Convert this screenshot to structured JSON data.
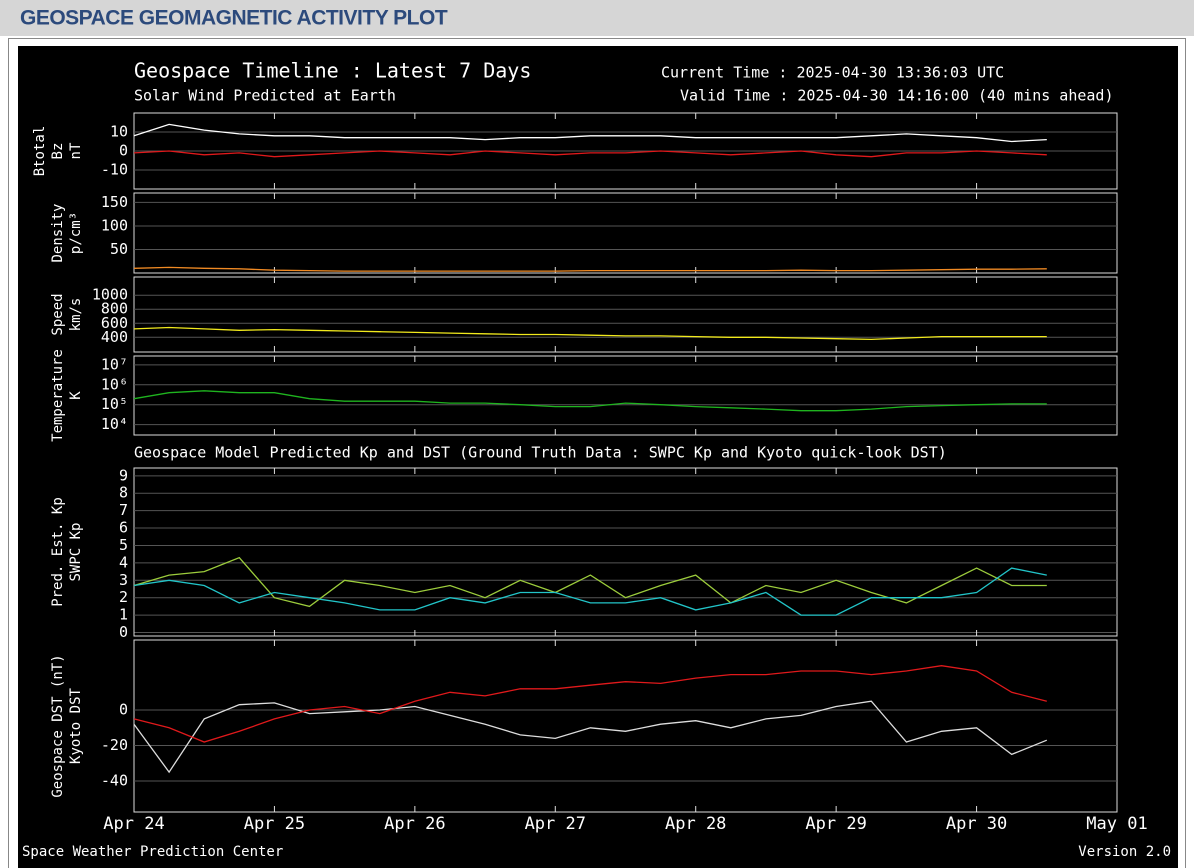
{
  "header": {
    "title": "GEOSPACE GEOMAGNETIC ACTIVITY PLOT"
  },
  "plot": {
    "title": "Geospace Timeline : Latest 7 Days",
    "current_time": "Current Time : 2025-04-30 13:36:03 UTC",
    "subtitle": "Solar Wind Predicted at Earth",
    "valid_time": "Valid Time : 2025-04-30 14:16:00 (40 mins ahead)",
    "footer_left": "Space Weather Prediction Center",
    "footer_right": "Version 2.0"
  },
  "chart_data": [
    {
      "type": "line",
      "ylabel": "nT",
      "xlim": [
        "2025-04-24T00:00",
        "2025-05-01T00:00"
      ],
      "ylim": [
        -20,
        20
      ],
      "yticks": [
        10,
        0,
        -10
      ],
      "grid": true,
      "x": [
        "2025-04-24T00:00",
        "2025-04-24T06:00",
        "2025-04-24T12:00",
        "2025-04-24T18:00",
        "2025-04-25T00:00",
        "2025-04-25T06:00",
        "2025-04-25T12:00",
        "2025-04-25T18:00",
        "2025-04-26T00:00",
        "2025-04-26T06:00",
        "2025-04-26T12:00",
        "2025-04-26T18:00",
        "2025-04-27T00:00",
        "2025-04-27T06:00",
        "2025-04-27T12:00",
        "2025-04-27T18:00",
        "2025-04-28T00:00",
        "2025-04-28T06:00",
        "2025-04-28T12:00",
        "2025-04-28T18:00",
        "2025-04-29T00:00",
        "2025-04-29T06:00",
        "2025-04-29T12:00",
        "2025-04-29T18:00",
        "2025-04-30T00:00",
        "2025-04-30T06:00",
        "2025-04-30T12:00"
      ],
      "series": [
        {
          "name": "Btotal",
          "color": "#ffffff",
          "values": [
            8,
            14,
            11,
            9,
            8,
            8,
            7,
            7,
            7,
            7,
            6,
            7,
            7,
            8,
            8,
            8,
            7,
            7,
            7,
            7,
            7,
            8,
            9,
            8,
            7,
            5,
            6
          ]
        },
        {
          "name": "Bz",
          "color": "#e0191b",
          "values": [
            -1,
            0,
            -2,
            -1,
            -3,
            -2,
            -1,
            0,
            -1,
            -2,
            0,
            -1,
            -2,
            -1,
            -1,
            0,
            -1,
            -2,
            -1,
            0,
            -2,
            -3,
            -1,
            -1,
            0,
            -1,
            -2
          ]
        }
      ]
    },
    {
      "type": "line",
      "ylabel": "p/cm³",
      "xlim": [
        "2025-04-24T00:00",
        "2025-05-01T00:00"
      ],
      "ylim": [
        0,
        170
      ],
      "yticks": [
        150,
        100,
        50
      ],
      "grid": true,
      "x": [
        "2025-04-24T00:00",
        "2025-04-24T06:00",
        "2025-04-24T12:00",
        "2025-04-24T18:00",
        "2025-04-25T00:00",
        "2025-04-25T06:00",
        "2025-04-25T12:00",
        "2025-04-25T18:00",
        "2025-04-26T00:00",
        "2025-04-26T06:00",
        "2025-04-26T12:00",
        "2025-04-26T18:00",
        "2025-04-27T00:00",
        "2025-04-27T06:00",
        "2025-04-27T12:00",
        "2025-04-27T18:00",
        "2025-04-28T00:00",
        "2025-04-28T06:00",
        "2025-04-28T12:00",
        "2025-04-28T18:00",
        "2025-04-29T00:00",
        "2025-04-29T06:00",
        "2025-04-29T12:00",
        "2025-04-29T18:00",
        "2025-04-30T00:00",
        "2025-04-30T06:00",
        "2025-04-30T12:00"
      ],
      "series": [
        {
          "name": "Density",
          "color": "#f08a24",
          "values": [
            10,
            12,
            10,
            9,
            6,
            5,
            4,
            4,
            4,
            4,
            4,
            4,
            4,
            5,
            5,
            5,
            5,
            5,
            5,
            6,
            5,
            5,
            6,
            7,
            8,
            8,
            9
          ]
        }
      ]
    },
    {
      "type": "line",
      "ylabel": "km/s",
      "xlim": [
        "2025-04-24T00:00",
        "2025-05-01T00:00"
      ],
      "ylim": [
        190,
        1260
      ],
      "yticks": [
        1000,
        800,
        600,
        400
      ],
      "grid": true,
      "x": [
        "2025-04-24T00:00",
        "2025-04-24T06:00",
        "2025-04-24T12:00",
        "2025-04-24T18:00",
        "2025-04-25T00:00",
        "2025-04-25T06:00",
        "2025-04-25T12:00",
        "2025-04-25T18:00",
        "2025-04-26T00:00",
        "2025-04-26T06:00",
        "2025-04-26T12:00",
        "2025-04-26T18:00",
        "2025-04-27T00:00",
        "2025-04-27T06:00",
        "2025-04-27T12:00",
        "2025-04-27T18:00",
        "2025-04-28T00:00",
        "2025-04-28T06:00",
        "2025-04-28T12:00",
        "2025-04-28T18:00",
        "2025-04-29T00:00",
        "2025-04-29T06:00",
        "2025-04-29T12:00",
        "2025-04-29T18:00",
        "2025-04-30T00:00",
        "2025-04-30T06:00",
        "2025-04-30T12:00"
      ],
      "series": [
        {
          "name": "Speed",
          "color": "#f2ea1c",
          "values": [
            520,
            540,
            520,
            500,
            510,
            500,
            490,
            480,
            470,
            460,
            450,
            440,
            440,
            430,
            420,
            420,
            410,
            400,
            400,
            390,
            380,
            370,
            390,
            410,
            410,
            410,
            410
          ]
        }
      ]
    },
    {
      "type": "line",
      "ylabel": "K",
      "log": true,
      "xlim": [
        "2025-04-24T00:00",
        "2025-05-01T00:00"
      ],
      "ylim": [
        3000,
        28000000
      ],
      "yticks": [
        {
          "value": 10000000,
          "label": "10⁷"
        },
        {
          "value": 1000000,
          "label": "10⁶"
        },
        {
          "value": 100000,
          "label": "10⁵"
        },
        {
          "value": 10000,
          "label": "10⁴"
        }
      ],
      "grid": true,
      "x": [
        "2025-04-24T00:00",
        "2025-04-24T06:00",
        "2025-04-24T12:00",
        "2025-04-24T18:00",
        "2025-04-25T00:00",
        "2025-04-25T06:00",
        "2025-04-25T12:00",
        "2025-04-25T18:00",
        "2025-04-26T00:00",
        "2025-04-26T06:00",
        "2025-04-26T12:00",
        "2025-04-26T18:00",
        "2025-04-27T00:00",
        "2025-04-27T06:00",
        "2025-04-27T12:00",
        "2025-04-27T18:00",
        "2025-04-28T00:00",
        "2025-04-28T06:00",
        "2025-04-28T12:00",
        "2025-04-28T18:00",
        "2025-04-29T00:00",
        "2025-04-29T06:00",
        "2025-04-29T12:00",
        "2025-04-29T18:00",
        "2025-04-30T00:00",
        "2025-04-30T06:00",
        "2025-04-30T12:00"
      ],
      "series": [
        {
          "name": "Temperature",
          "color": "#1fb41f",
          "values": [
            200000,
            400000,
            500000,
            400000,
            400000,
            200000,
            150000,
            150000,
            150000,
            120000,
            120000,
            100000,
            80000,
            80000,
            120000,
            100000,
            80000,
            70000,
            60000,
            50000,
            50000,
            60000,
            80000,
            90000,
            100000,
            110000,
            110000
          ]
        }
      ]
    },
    {
      "type": "line",
      "title": "Geospace Model Predicted Kp and DST (Ground Truth Data : SWPC Kp and Kyoto quick-look DST)",
      "xlim": [
        "2025-04-24T00:00",
        "2025-05-01T00:00"
      ],
      "ylim": [
        -0.2,
        9.45
      ],
      "yticks": [
        9,
        8,
        7,
        6,
        5,
        4,
        3,
        2,
        1,
        0
      ],
      "grid": true,
      "x": [
        "2025-04-24T00:00",
        "2025-04-24T06:00",
        "2025-04-24T12:00",
        "2025-04-24T18:00",
        "2025-04-25T00:00",
        "2025-04-25T06:00",
        "2025-04-25T12:00",
        "2025-04-25T18:00",
        "2025-04-26T00:00",
        "2025-04-26T06:00",
        "2025-04-26T12:00",
        "2025-04-26T18:00",
        "2025-04-27T00:00",
        "2025-04-27T06:00",
        "2025-04-27T12:00",
        "2025-04-27T18:00",
        "2025-04-28T00:00",
        "2025-04-28T06:00",
        "2025-04-28T12:00",
        "2025-04-28T18:00",
        "2025-04-29T00:00",
        "2025-04-29T06:00",
        "2025-04-29T12:00",
        "2025-04-29T18:00",
        "2025-04-30T00:00",
        "2025-04-30T06:00",
        "2025-04-30T12:00"
      ],
      "series": [
        {
          "name": "Pred. Est. Kp",
          "color": "#9ccc3c",
          "values": [
            2.7,
            3.3,
            3.5,
            4.3,
            2,
            1.5,
            3,
            2.7,
            2.3,
            2.7,
            2,
            3,
            2.3,
            3.3,
            2,
            2.7,
            3.3,
            1.7,
            2.7,
            2.3,
            3,
            2.3,
            1.7,
            2.7,
            3.7,
            2.7,
            2.7
          ]
        },
        {
          "name": "SWPC Kp",
          "color": "#22c4c8",
          "values": [
            2.7,
            3,
            2.7,
            1.7,
            2.3,
            2,
            1.7,
            1.3,
            1.3,
            2,
            1.7,
            2.3,
            2.3,
            1.7,
            1.7,
            2,
            1.3,
            1.7,
            2.3,
            1,
            1,
            2,
            2,
            2,
            2.3,
            3.7,
            3.3
          ]
        }
      ]
    },
    {
      "type": "line",
      "xlim": [
        "2025-04-24T00:00",
        "2025-05-01T00:00"
      ],
      "ylim": [
        -57.5,
        39.5
      ],
      "yticks": [
        0,
        -20,
        -40
      ],
      "grid": true,
      "xticks": [
        {
          "value": "2025-04-24T00:00",
          "label": "Apr 24"
        },
        {
          "value": "2025-04-25T00:00",
          "label": "Apr 25"
        },
        {
          "value": "2025-04-26T00:00",
          "label": "Apr 26"
        },
        {
          "value": "2025-04-27T00:00",
          "label": "Apr 27"
        },
        {
          "value": "2025-04-28T00:00",
          "label": "Apr 28"
        },
        {
          "value": "2025-04-29T00:00",
          "label": "Apr 29"
        },
        {
          "value": "2025-04-30T00:00",
          "label": "Apr 30"
        },
        {
          "value": "2025-05-01T00:00",
          "label": "May 01"
        }
      ],
      "x": [
        "2025-04-24T00:00",
        "2025-04-24T06:00",
        "2025-04-24T12:00",
        "2025-04-24T18:00",
        "2025-04-25T00:00",
        "2025-04-25T06:00",
        "2025-04-25T12:00",
        "2025-04-25T18:00",
        "2025-04-26T00:00",
        "2025-04-26T06:00",
        "2025-04-26T12:00",
        "2025-04-26T18:00",
        "2025-04-27T00:00",
        "2025-04-27T06:00",
        "2025-04-27T12:00",
        "2025-04-27T18:00",
        "2025-04-28T00:00",
        "2025-04-28T06:00",
        "2025-04-28T12:00",
        "2025-04-28T18:00",
        "2025-04-29T00:00",
        "2025-04-29T06:00",
        "2025-04-29T12:00",
        "2025-04-29T18:00",
        "2025-04-30T00:00",
        "2025-04-30T06:00",
        "2025-04-30T12:00"
      ],
      "series": [
        {
          "name": "Geospace DST (nT)",
          "color": "#dddddd",
          "values": [
            -8,
            -35,
            -5,
            3,
            4,
            -2,
            -1,
            0,
            2,
            -3,
            -8,
            -14,
            -16,
            -10,
            -12,
            -8,
            -6,
            -10,
            -5,
            -3,
            2,
            5,
            -18,
            -12,
            -10,
            -25,
            -17
          ]
        },
        {
          "name": "Kyoto DST",
          "color": "#e0191b",
          "values": [
            -5,
            -10,
            -18,
            -12,
            -5,
            0,
            2,
            -2,
            5,
            10,
            8,
            12,
            12,
            14,
            16,
            15,
            18,
            20,
            20,
            22,
            22,
            20,
            22,
            25,
            22,
            10,
            5
          ]
        }
      ]
    }
  ]
}
